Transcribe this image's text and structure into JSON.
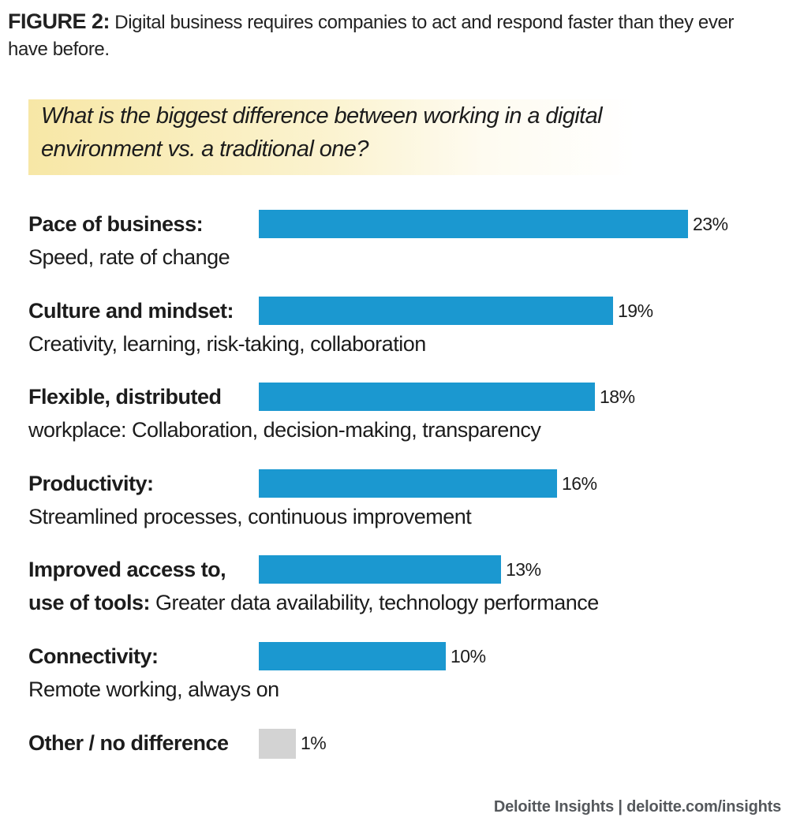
{
  "figure": {
    "label": "FIGURE 2:",
    "caption": "Digital business requires companies to act and respond faster than they ever have before."
  },
  "question": "What is the biggest difference between working in a digital environment vs. a traditional one?",
  "source": "Deloitte Insights | deloitte.com/insights",
  "colors": {
    "bar_primary": "#1b98d0",
    "bar_other": "#d3d3d3",
    "question_bg": "#f7e7a6"
  },
  "chart_data": {
    "type": "bar",
    "orientation": "horizontal",
    "title": "What is the biggest difference between working in a digital environment vs. a traditional one?",
    "xlabel": "",
    "ylabel": "",
    "unit": "%",
    "xlim": [
      0,
      23
    ],
    "grid": false,
    "legend": "none",
    "categories": [
      {
        "bold": "Pace of business:",
        "rest": "",
        "line2": "Speed, rate of change"
      },
      {
        "bold": "Culture and mindset:",
        "rest": "",
        "line2": "Creativity, learning, risk-taking, collaboration"
      },
      {
        "bold": "Flexible, distributed",
        "rest": "",
        "line2": "workplace: Collaboration, decision-making, transparency"
      },
      {
        "bold": "Productivity:",
        "rest": "",
        "line2": "Streamlined processes, continuous improvement"
      },
      {
        "bold": "Improved access to,",
        "rest": "",
        "line2_bold": "use of tools:",
        "line2": " Greater data availability, technology performance"
      },
      {
        "bold": "Connectivity:",
        "rest": "",
        "line2": "Remote working, always on"
      },
      {
        "bold": "Other / no difference",
        "rest": "",
        "line2": ""
      }
    ],
    "values": [
      23,
      19,
      18,
      16,
      13,
      10,
      1
    ],
    "value_labels": [
      "23%",
      "19%",
      "18%",
      "16%",
      "13%",
      "10%",
      "1%"
    ],
    "highlight": [
      "primary",
      "primary",
      "primary",
      "primary",
      "primary",
      "primary",
      "other"
    ]
  }
}
